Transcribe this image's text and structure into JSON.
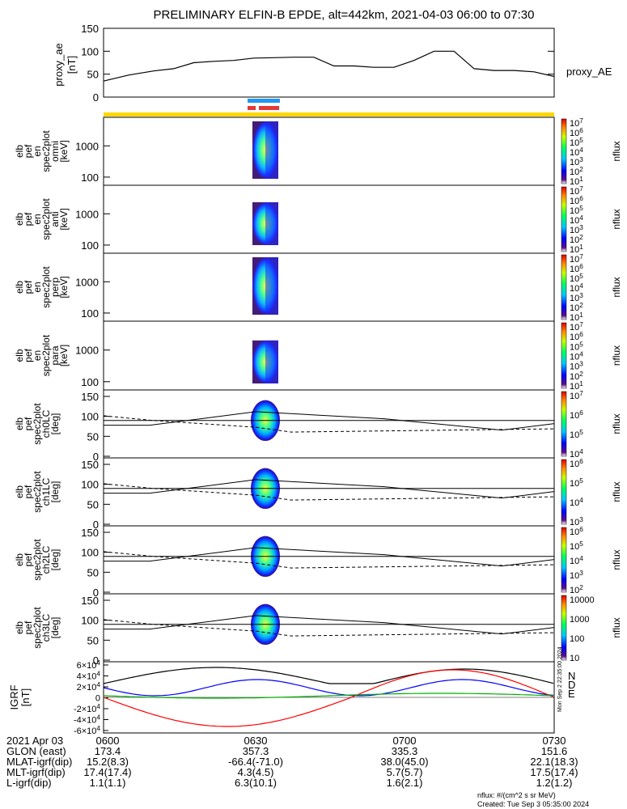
{
  "title": "PRELIMINARY ELFIN-B EPDE, alt=442km, 2021-04-03 06:00 to 07:30",
  "colors": {
    "yellow": "#ffd700",
    "blue": "#2196f3",
    "red": "#e53935",
    "ae": "#000000"
  },
  "chart_data": [
    {
      "type": "line",
      "panel": "proxy_ae",
      "ylabel": "proxy_ae [nT]",
      "ylim": [
        0,
        150
      ],
      "yticks": [
        0,
        50,
        100,
        150
      ],
      "series": [
        {
          "name": "proxy_AE",
          "x": [
            "06:00",
            "06:05",
            "06:10",
            "06:14",
            "06:18",
            "06:22",
            "06:26",
            "06:30",
            "06:34",
            "06:38",
            "06:42",
            "06:46",
            "06:50",
            "06:54",
            "06:58",
            "07:02",
            "07:06",
            "07:10",
            "07:14",
            "07:18",
            "07:22",
            "07:26",
            "07:30"
          ],
          "values": [
            35,
            48,
            57,
            62,
            75,
            78,
            80,
            85,
            86,
            87,
            87,
            68,
            68,
            65,
            65,
            80,
            100,
            100,
            62,
            58,
            58,
            55,
            45
          ]
        }
      ]
    },
    {
      "type": "heatmap",
      "panel": "omni",
      "ylabel": [
        "elb",
        "pef",
        "en",
        "spec2plot",
        "omni",
        "[keV]"
      ],
      "yticks": [
        "1000",
        "100"
      ],
      "scale": "log",
      "colorbar_ticks": [
        "10^7",
        "10^6",
        "10^5",
        "10^4",
        "10^3",
        "10^2",
        "10^1"
      ],
      "colorbar_label": "nflux"
    },
    {
      "type": "heatmap",
      "panel": "anti",
      "ylabel": [
        "elb",
        "pef",
        "en",
        "spec2plot",
        "anti",
        "[keV]"
      ],
      "yticks": [
        "1000",
        "100"
      ],
      "scale": "log",
      "colorbar_ticks": [
        "10^7",
        "10^6",
        "10^5",
        "10^4",
        "10^3",
        "10^2",
        "10^1"
      ],
      "colorbar_label": "nflux"
    },
    {
      "type": "heatmap",
      "panel": "perp",
      "ylabel": [
        "elb",
        "pef",
        "en",
        "spec2plot",
        "perp",
        "[keV]"
      ],
      "yticks": [
        "1000",
        "100"
      ],
      "scale": "log",
      "colorbar_ticks": [
        "10^7",
        "10^6",
        "10^5",
        "10^4",
        "10^3",
        "10^2",
        "10^1"
      ],
      "colorbar_label": "nflux"
    },
    {
      "type": "heatmap",
      "panel": "para",
      "ylabel": [
        "elb",
        "pef",
        "en",
        "spec2plot",
        "para",
        "[keV]"
      ],
      "yticks": [
        "1000",
        "100"
      ],
      "scale": "log",
      "colorbar_ticks": [
        "10^7",
        "10^6",
        "10^5",
        "10^4",
        "10^3",
        "10^2",
        "10^1"
      ],
      "colorbar_label": "nflux"
    },
    {
      "type": "heatmap",
      "panel": "ch0LC",
      "ylabel": [
        "elb",
        "pef",
        "spec2plot",
        "ch0LC",
        "[deg]"
      ],
      "yticks": [
        "150",
        "100",
        "50",
        "0"
      ],
      "colorbar_ticks": [
        "10^7",
        "10^6",
        "10^5",
        "10^4"
      ],
      "colorbar_label": "nflux"
    },
    {
      "type": "heatmap",
      "panel": "ch1LC",
      "ylabel": [
        "elb",
        "pef",
        "spec2plot",
        "ch1LC",
        "[deg]"
      ],
      "yticks": [
        "150",
        "100",
        "50",
        "0"
      ],
      "colorbar_ticks": [
        "10^6",
        "10^5",
        "10^4",
        "10^3"
      ],
      "colorbar_label": "nflux"
    },
    {
      "type": "heatmap",
      "panel": "ch2LC",
      "ylabel": [
        "elb",
        "pef",
        "spec2plot",
        "ch2LC",
        "[deg]"
      ],
      "yticks": [
        "150",
        "100",
        "50",
        "0"
      ],
      "colorbar_ticks": [
        "10^6",
        "10^5",
        "10^4",
        "10^3",
        "10^2"
      ],
      "colorbar_label": "nflux"
    },
    {
      "type": "heatmap",
      "panel": "ch3LC",
      "ylabel": [
        "elb",
        "pef",
        "spec2plot",
        "ch3LC",
        "[deg]"
      ],
      "yticks": [
        "150",
        "100",
        "50",
        "0"
      ],
      "colorbar_ticks": [
        "10000",
        "1000",
        "100",
        "10"
      ],
      "colorbar_label": "nflux"
    },
    {
      "type": "line",
      "panel": "IGRF",
      "ylabel": "IGRF [nT]",
      "yticks": [
        "6×10^4",
        "4×10^4",
        "2×10^4",
        "0",
        "-2×10^4",
        "-4×10^4",
        "-6×10^4"
      ],
      "legend": [
        "N",
        "D",
        "E"
      ],
      "series_colors": {
        "N": "#0000ff",
        "D": "#ff0000",
        "E": "#00b000",
        "total": "#000000"
      }
    }
  ],
  "footer": {
    "date": "2021 Apr 03",
    "times": [
      "0600",
      "0630",
      "0700",
      "0730"
    ],
    "rows": [
      {
        "label": "GLON (east)",
        "values": [
          "173.4",
          "357.3",
          "335.3",
          "151.6"
        ]
      },
      {
        "label": "MLAT-igrf(dip)",
        "values": [
          "15.2(8.3)",
          "-66.4(-71.0)",
          "38.0(45.0)",
          "22.1(18.3)"
        ]
      },
      {
        "label": "MLT-igrf(dip)",
        "values": [
          "17.4(17.4)",
          "4.3(4.5)",
          "5.7(5.7)",
          "17.5(17.4)"
        ]
      },
      {
        "label": "L-igrf(dip)",
        "values": [
          "1.1(1.1)",
          "6.3(10.1)",
          "1.6(2.1)",
          "1.2(1.2)"
        ]
      }
    ],
    "units": "nflux: #/(cm^2 s sr MeV)",
    "created": "Created: Tue Sep  3 05:35:00 2024",
    "side_stamp": "Mon Sep  2 22:35:00 2024"
  }
}
